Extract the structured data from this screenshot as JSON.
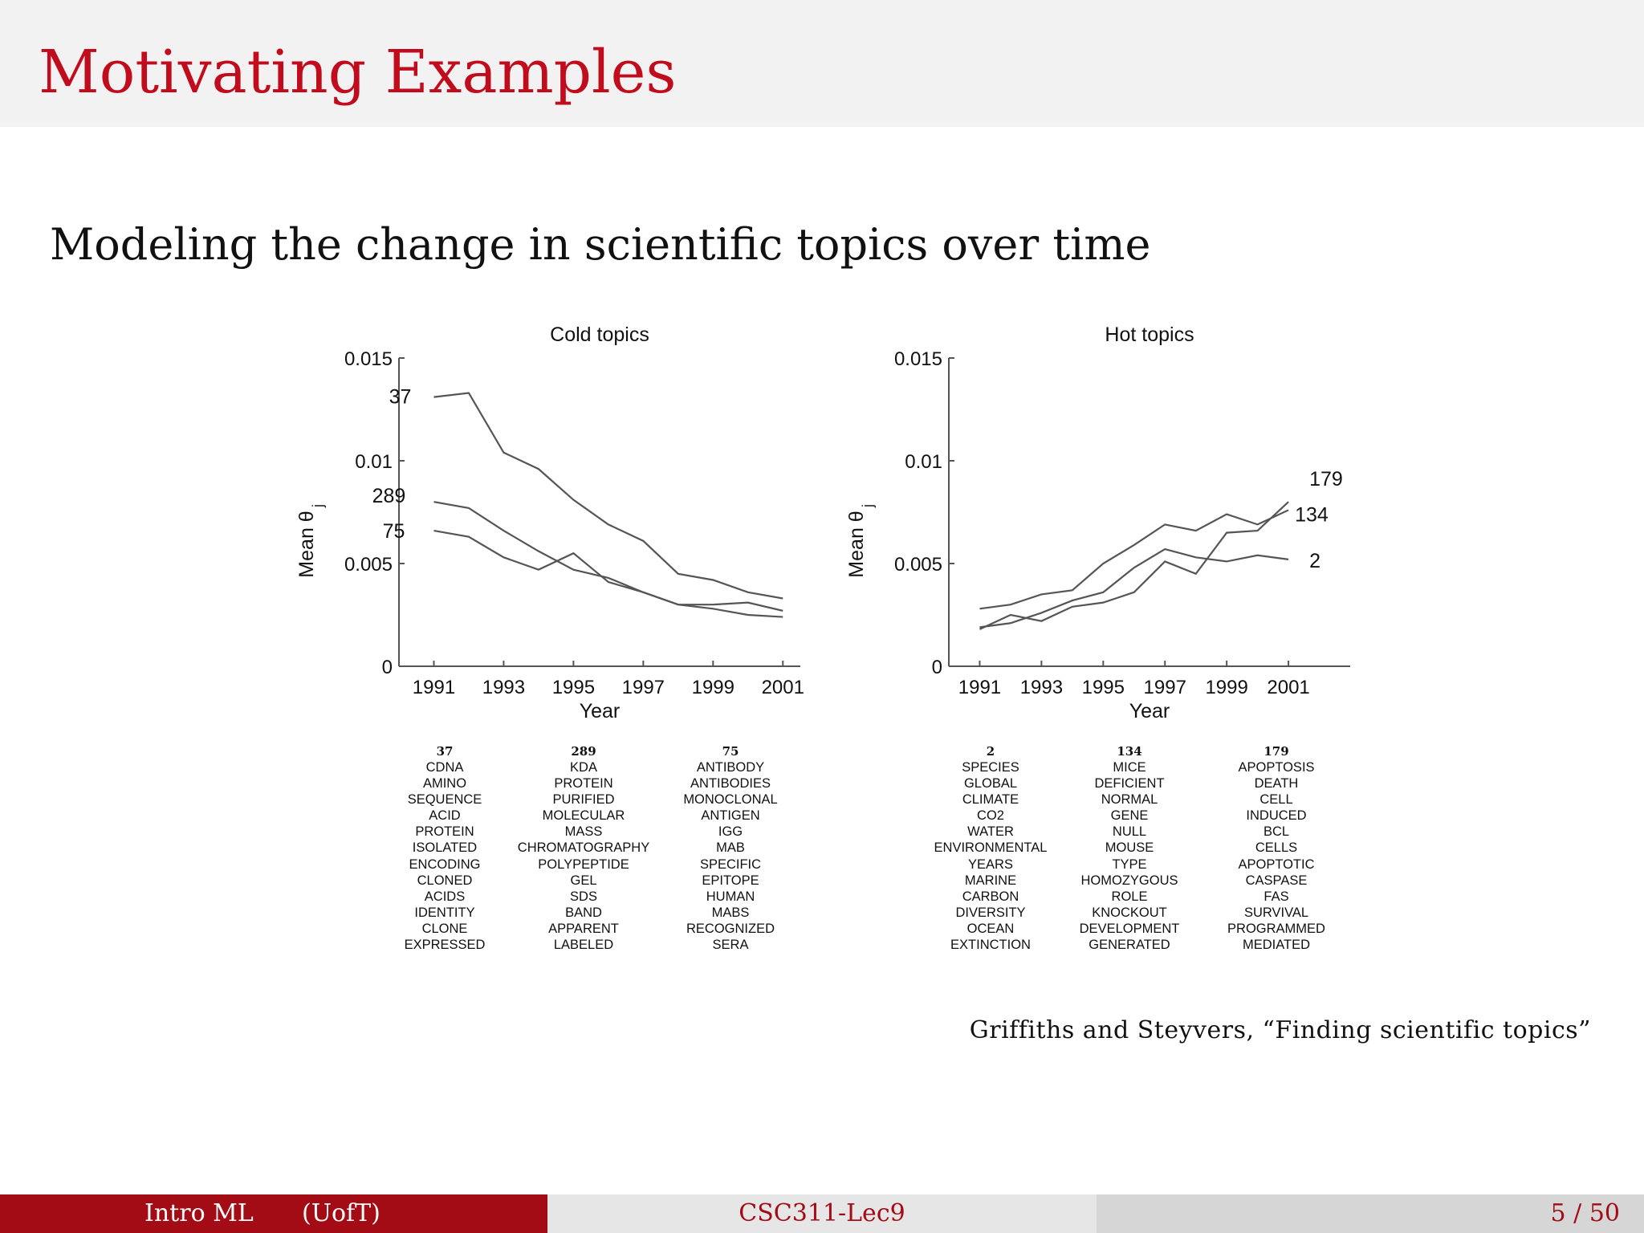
{
  "slide": {
    "title": "Motivating Examples",
    "subtitle": "Modeling the change in scientific topics over time",
    "citation": "Griffiths and Steyvers, “Finding scientific topics”"
  },
  "footer": {
    "author": "Intro ML",
    "institution": "(UofT)",
    "course": "CSC311-Lec9",
    "page": "5 / 50"
  },
  "colors": {
    "title": "#c00c1c",
    "footer_bg": "#a30b15",
    "line": "#555555"
  },
  "chart_data": [
    {
      "type": "line",
      "title": "Cold topics",
      "xlabel": "Year",
      "ylabel": "Mean θ",
      "ylabel_sub": "j",
      "xlim": [
        1990,
        2001.5
      ],
      "ylim": [
        0,
        0.015
      ],
      "xticks": [
        "1991",
        "1993",
        "1995",
        "1997",
        "1999",
        "2001"
      ],
      "yticks": [
        "0",
        "0.005",
        "0.01",
        "0.015"
      ],
      "x": [
        1991,
        1992,
        1993,
        1994,
        1995,
        1996,
        1997,
        1998,
        1999,
        2000,
        2001
      ],
      "series": [
        {
          "name": "37",
          "values": [
            0.0131,
            0.0133,
            0.0104,
            0.0096,
            0.0081,
            0.0069,
            0.0061,
            0.0045,
            0.0042,
            0.0036,
            0.0033
          ]
        },
        {
          "name": "289",
          "values": [
            0.008,
            0.0077,
            0.0066,
            0.0056,
            0.0047,
            0.0043,
            0.0036,
            0.003,
            0.0028,
            0.0025,
            0.0024
          ]
        },
        {
          "name": "75",
          "values": [
            0.0066,
            0.0063,
            0.0053,
            0.0047,
            0.0055,
            0.0041,
            0.0036,
            0.003,
            0.003,
            0.0031,
            0.0027
          ]
        }
      ],
      "topics": [
        {
          "id": "37",
          "words": [
            "CDNA",
            "AMINO",
            "SEQUENCE",
            "ACID",
            "PROTEIN",
            "ISOLATED",
            "ENCODING",
            "CLONED",
            "ACIDS",
            "IDENTITY",
            "CLONE",
            "EXPRESSED"
          ]
        },
        {
          "id": "289",
          "words": [
            "KDA",
            "PROTEIN",
            "PURIFIED",
            "MOLECULAR",
            "MASS",
            "CHROMATOGRAPHY",
            "POLYPEPTIDE",
            "GEL",
            "SDS",
            "BAND",
            "APPARENT",
            "LABELED"
          ]
        },
        {
          "id": "75",
          "words": [
            "ANTIBODY",
            "ANTIBODIES",
            "MONOCLONAL",
            "ANTIGEN",
            "IGG",
            "MAB",
            "SPECIFIC",
            "EPITOPE",
            "HUMAN",
            "MABS",
            "RECOGNIZED",
            "SERA"
          ]
        }
      ]
    },
    {
      "type": "line",
      "title": "Hot topics",
      "xlabel": "Year",
      "ylabel": "Mean θ",
      "ylabel_sub": "j",
      "xlim": [
        1990,
        2003
      ],
      "ylim": [
        0,
        0.015
      ],
      "xticks": [
        "1991",
        "1993",
        "1995",
        "1997",
        "1999",
        "2001"
      ],
      "yticks": [
        "0",
        "0.005",
        "0.01",
        "0.015"
      ],
      "x": [
        1991,
        1992,
        1993,
        1994,
        1995,
        1996,
        1997,
        1998,
        1999,
        2000,
        2001
      ],
      "series": [
        {
          "name": "2",
          "values": [
            0.0019,
            0.0021,
            0.0026,
            0.0032,
            0.0036,
            0.0048,
            0.0057,
            0.0053,
            0.0051,
            0.0054,
            0.0052
          ]
        },
        {
          "name": "134",
          "values": [
            0.0028,
            0.003,
            0.0035,
            0.0037,
            0.005,
            0.0059,
            0.0069,
            0.0066,
            0.0074,
            0.0069,
            0.0076
          ]
        },
        {
          "name": "179",
          "values": [
            0.0018,
            0.0025,
            0.0022,
            0.0029,
            0.0031,
            0.0036,
            0.0051,
            0.0045,
            0.0065,
            0.0066,
            0.008
          ]
        }
      ],
      "topics": [
        {
          "id": "2",
          "words": [
            "SPECIES",
            "GLOBAL",
            "CLIMATE",
            "CO2",
            "WATER",
            "ENVIRONMENTAL",
            "YEARS",
            "MARINE",
            "CARBON",
            "DIVERSITY",
            "OCEAN",
            "EXTINCTION"
          ]
        },
        {
          "id": "134",
          "words": [
            "MICE",
            "DEFICIENT",
            "NORMAL",
            "GENE",
            "NULL",
            "MOUSE",
            "TYPE",
            "HOMOZYGOUS",
            "ROLE",
            "KNOCKOUT",
            "DEVELOPMENT",
            "GENERATED"
          ]
        },
        {
          "id": "179",
          "words": [
            "APOPTOSIS",
            "DEATH",
            "CELL",
            "INDUCED",
            "BCL",
            "CELLS",
            "APOPTOTIC",
            "CASPASE",
            "FAS",
            "SURVIVAL",
            "PROGRAMMED",
            "MEDIATED"
          ]
        }
      ]
    }
  ]
}
